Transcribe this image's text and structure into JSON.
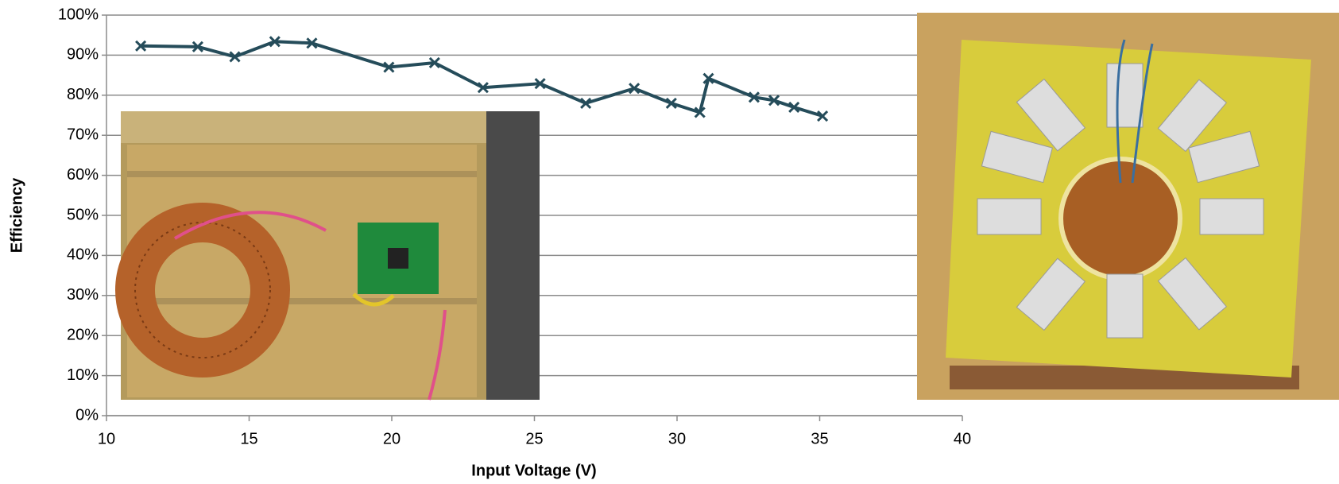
{
  "chart_data": {
    "type": "line",
    "x_label": "Input Voltage (V)",
    "y_label": "Efficiency",
    "x": [
      11.2,
      13.2,
      14.5,
      15.9,
      17.2,
      19.9,
      21.5,
      23.2,
      25.2,
      26.8,
      28.5,
      29.8,
      30.8,
      31.1,
      32.7,
      33.4,
      34.1,
      35.1
    ],
    "series": [
      {
        "color": "#254c5a",
        "values": [
          92.3,
          92.1,
          89.6,
          93.4,
          93.0,
          87.0,
          88.1,
          81.9,
          82.9,
          78.0,
          81.7,
          78.0,
          75.7,
          84.2,
          79.5,
          78.7,
          77.0,
          74.8
        ]
      }
    ],
    "xlim": [
      10,
      40
    ],
    "xticks": [
      10,
      15,
      20,
      25,
      30,
      35,
      40
    ],
    "ylim": [
      0,
      100
    ],
    "yticks": [
      {
        "value": 0,
        "label": "0%"
      },
      {
        "value": 10,
        "label": "10%"
      },
      {
        "value": 20,
        "label": "20%"
      },
      {
        "value": 30,
        "label": "30%"
      },
      {
        "value": 40,
        "label": "40%"
      },
      {
        "value": 50,
        "label": "50%"
      },
      {
        "value": 60,
        "label": "60%"
      },
      {
        "value": 70,
        "label": "70%"
      },
      {
        "value": 80,
        "label": "80%"
      },
      {
        "value": 90,
        "label": "90%"
      },
      {
        "value": 100,
        "label": "100%"
      }
    ],
    "grid": true
  }
}
